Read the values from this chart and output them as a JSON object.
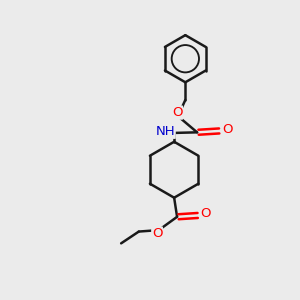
{
  "background_color": "#ebebeb",
  "bond_color": "#1a1a1a",
  "bond_width": 1.8,
  "atom_colors": {
    "O": "#ff0000",
    "N": "#0000cd",
    "C": "#1a1a1a",
    "H": "#999999"
  },
  "font_size": 9.5,
  "figsize": [
    3.0,
    3.0
  ],
  "dpi": 100
}
